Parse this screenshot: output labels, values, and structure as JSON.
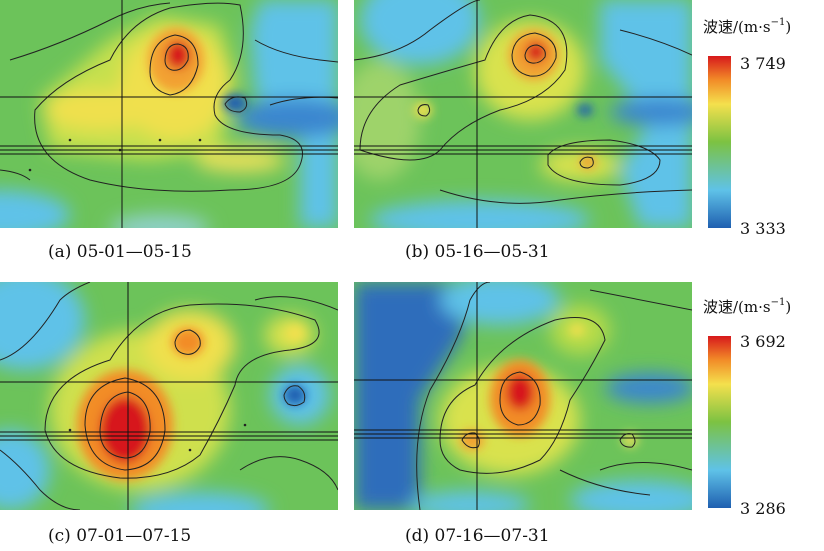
{
  "panels": [
    {
      "caption": "(a) 05-01—05-15"
    },
    {
      "caption": "(b) 05-16—05-31"
    },
    {
      "caption": "(c) 07-01—07-15"
    },
    {
      "caption": "(d) 07-16—07-31"
    }
  ],
  "legends": [
    {
      "title_prefix": "波速/(m·s",
      "title_exp": "−1",
      "title_suffix": ")",
      "max": "3 749",
      "min": "3 333"
    },
    {
      "title_prefix": "波速/(m·s",
      "title_exp": "−1",
      "title_suffix": ")",
      "max": "3 692",
      "min": "3 286"
    }
  ],
  "colors": {
    "high": "#d7191c",
    "orange": "#f28c28",
    "yellow": "#f4e04d",
    "green": "#7cc242",
    "cyan": "#5fc2e8",
    "low": "#1f5fb0"
  }
}
